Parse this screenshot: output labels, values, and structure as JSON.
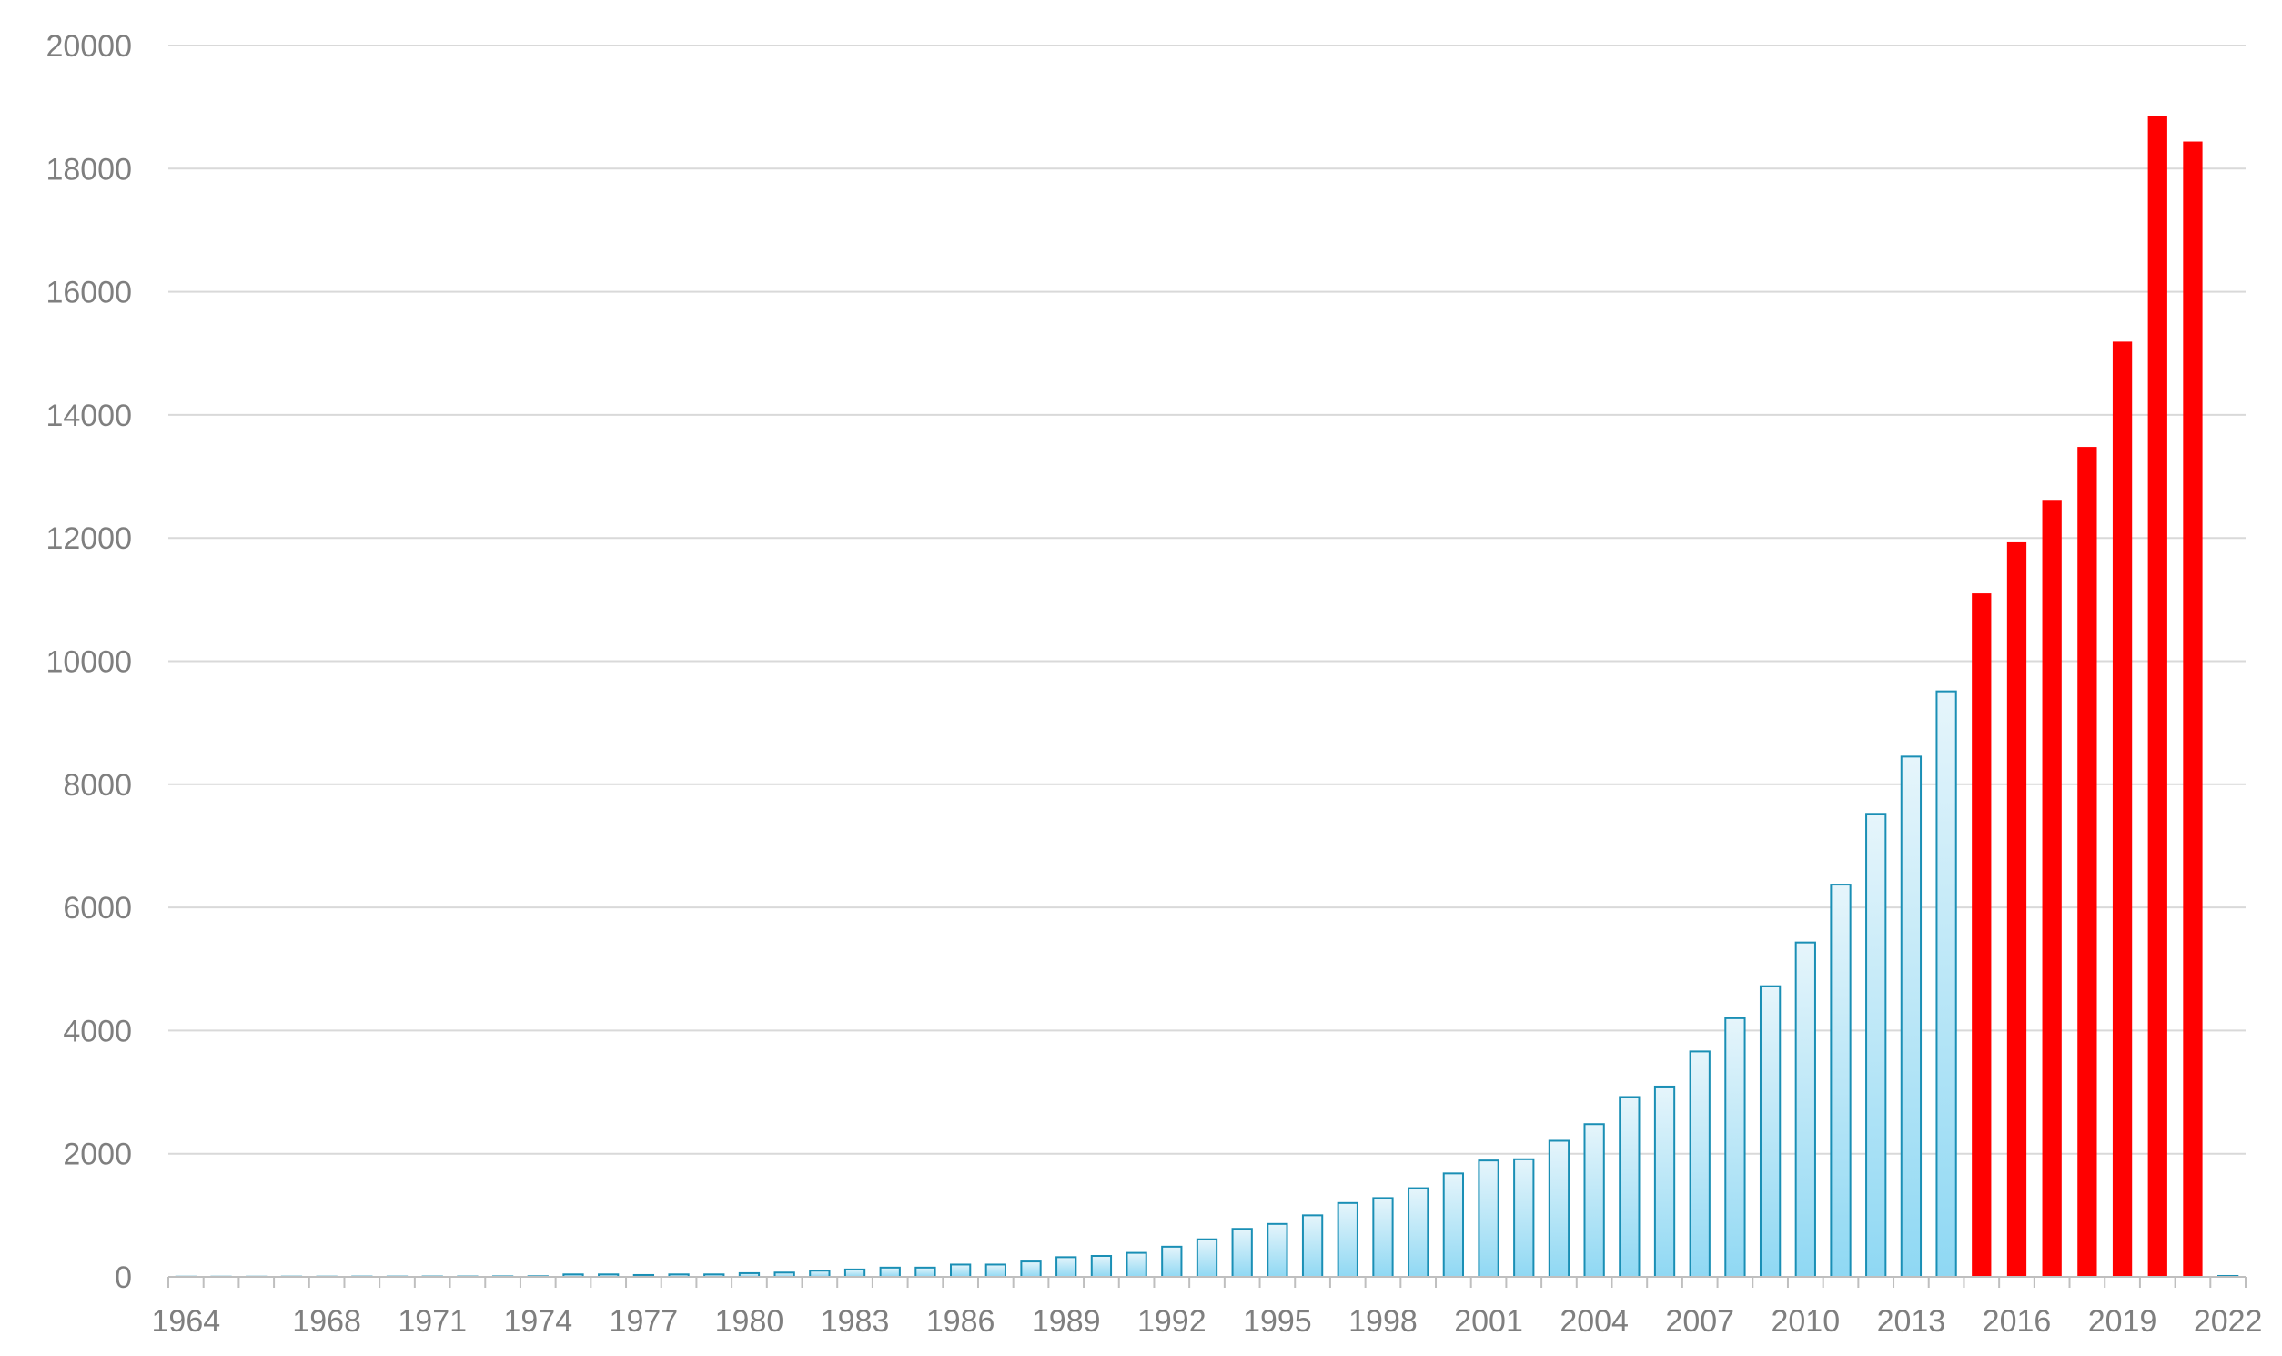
{
  "chart_data": {
    "type": "bar",
    "title": "",
    "xlabel": "",
    "ylabel": "",
    "ylim": [
      0,
      20000
    ],
    "yticks": [
      0,
      2000,
      4000,
      6000,
      8000,
      10000,
      12000,
      14000,
      16000,
      18000,
      20000
    ],
    "grid": true,
    "legend": "none",
    "categories": [
      1964,
      1965,
      1966,
      1967,
      1968,
      1969,
      1970,
      1971,
      1972,
      1973,
      1974,
      1975,
      1976,
      1977,
      1978,
      1979,
      1980,
      1981,
      1982,
      1983,
      1984,
      1985,
      1986,
      1987,
      1988,
      1989,
      1990,
      1991,
      1992,
      1993,
      1994,
      1995,
      1996,
      1997,
      1998,
      1999,
      2000,
      2001,
      2002,
      2003,
      2004,
      2005,
      2006,
      2007,
      2008,
      2009,
      2010,
      2011,
      2012,
      2013,
      2014,
      2015,
      2016,
      2017,
      2018,
      2019,
      2020,
      2021,
      2022
    ],
    "xtick_labels": [
      {
        "year": 1964,
        "label": "1964"
      },
      {
        "year": 1968,
        "label": "1968"
      },
      {
        "year": 1971,
        "label": "1971"
      },
      {
        "year": 1974,
        "label": "1974"
      },
      {
        "year": 1977,
        "label": "1977"
      },
      {
        "year": 1980,
        "label": "1980"
      },
      {
        "year": 1983,
        "label": "1983"
      },
      {
        "year": 1986,
        "label": "1986"
      },
      {
        "year": 1989,
        "label": "1989"
      },
      {
        "year": 1992,
        "label": "1992"
      },
      {
        "year": 1995,
        "label": "1995"
      },
      {
        "year": 1998,
        "label": "1998"
      },
      {
        "year": 2001,
        "label": "2001"
      },
      {
        "year": 2004,
        "label": "2004"
      },
      {
        "year": 2007,
        "label": "2007"
      },
      {
        "year": 2010,
        "label": "2010"
      },
      {
        "year": 2013,
        "label": "2013"
      },
      {
        "year": 2016,
        "label": "2016"
      },
      {
        "year": 2019,
        "label": "2019"
      },
      {
        "year": 2022,
        "label": "2022"
      }
    ],
    "values": [
      3,
      3,
      3,
      4,
      4,
      5,
      5,
      6,
      6,
      8,
      10,
      40,
      40,
      30,
      40,
      40,
      60,
      70,
      100,
      120,
      150,
      150,
      200,
      200,
      250,
      320,
      340,
      390,
      490,
      610,
      780,
      860,
      1000,
      1200,
      1280,
      1440,
      1680,
      1890,
      1910,
      2210,
      2480,
      2920,
      3090,
      3660,
      4200,
      4720,
      5430,
      6370,
      7520,
      8450,
      9510,
      11100,
      11930,
      12620,
      13480,
      15190,
      18860,
      18440,
      15
    ],
    "colors": {
      "historical_fill_top": "#e6f5fb",
      "historical_fill_bottom": "#8fd8f3",
      "historical_stroke": "#1a8fb5",
      "recent_fill": "#ff0000",
      "gridline": "#d9d9d9",
      "axis": "#bfbfbf",
      "tick_text": "#7f7f7f"
    },
    "highlight_years": [
      2015,
      2016,
      2017,
      2018,
      2019,
      2020,
      2021
    ]
  }
}
